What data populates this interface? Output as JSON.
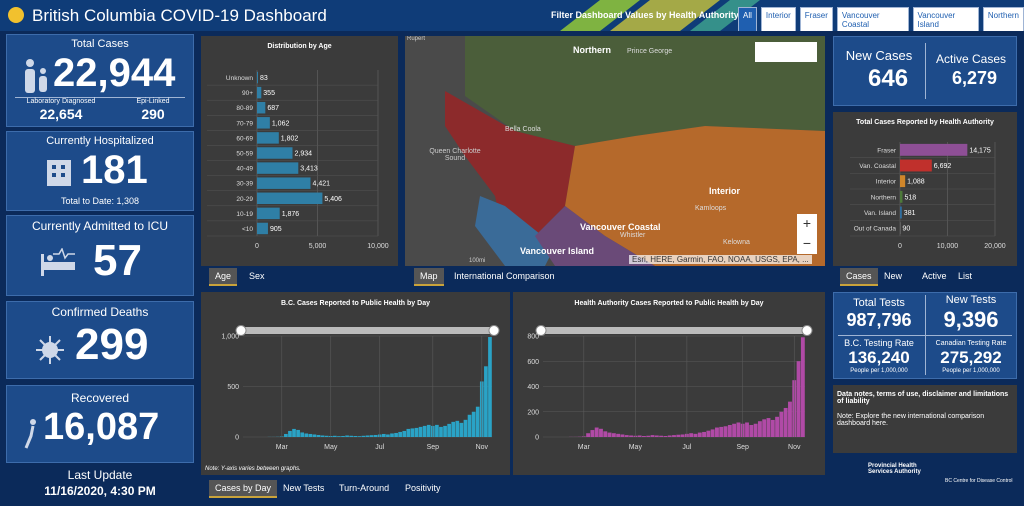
{
  "header": {
    "title": "British Columbia COVID-19 Dashboard",
    "filter_label": "Filter Dashboard Values by Health Authority:",
    "filters": [
      "All",
      "Interior",
      "Fraser",
      "Vancouver Coastal",
      "Vancouver Island",
      "Northern"
    ]
  },
  "kpis": {
    "total_cases": {
      "label": "Total Cases",
      "value": "22,944"
    },
    "lab": {
      "label": "Laboratory Diagnosed",
      "value": "22,654"
    },
    "epi": {
      "label": "Epi-Linked",
      "value": "290"
    },
    "hospitalized": {
      "label": "Currently Hospitalized",
      "value": "181",
      "sub": "Total to Date: 1,308"
    },
    "icu": {
      "label": "Currently Admitted to ICU",
      "value": "57"
    },
    "deaths": {
      "label": "Confirmed Deaths",
      "value": "299"
    },
    "recovered": {
      "label": "Recovered",
      "value": "16,087"
    },
    "last_update": {
      "label": "Last Update",
      "value": "11/16/2020, 4:30 PM"
    },
    "new_cases": {
      "label": "New Cases",
      "value": "646"
    },
    "active_cases": {
      "label": "Active Cases",
      "value": "6,279"
    },
    "total_tests": {
      "label": "Total Tests",
      "value": "987,796"
    },
    "new_tests": {
      "label": "New Tests",
      "value": "9,396"
    },
    "bc_rate": {
      "label": "B.C. Testing Rate",
      "value": "136,240",
      "sub": "People per 1,000,000"
    },
    "canada_rate": {
      "label": "Canadian Testing Rate",
      "value": "275,292",
      "sub": "People per 1,000,000"
    }
  },
  "tabs": {
    "age": [
      "Age",
      "Sex"
    ],
    "map": [
      "Map",
      "International Comparison"
    ],
    "ha": [
      "Cases",
      "New",
      "Active",
      "List"
    ],
    "daily": [
      "Cases by Day",
      "New Tests",
      "Turn-Around",
      "Positivity"
    ]
  },
  "map": {
    "labels": [
      "Northern",
      "Prince George",
      "Bella Coola",
      "Queen Charlotte Sound",
      "Interior",
      "Kamloops",
      "Vancouver Coastal",
      "Whistler",
      "Vancouver Island",
      "Kelowna",
      "Rupert"
    ],
    "attribution": "Esri, HERE, Garmin, FAO, NOAA, USGS, EPA, ...",
    "scale": "100mi"
  },
  "notes": {
    "title": "Data notes, terms of use, disclaimer and limitations of liability",
    "note": "Note: Explore the new international comparison dashboard here."
  },
  "logos": [
    "Provincial Health Services Authority",
    "BC Centre for Disease Control"
  ],
  "age_chart": {
    "type": "bar",
    "orientation": "horizontal",
    "title": "Distribution by Age",
    "categories": [
      "Unknown",
      "90+",
      "80-89",
      "70-79",
      "60-69",
      "50-59",
      "40-49",
      "30-39",
      "20-29",
      "10-19",
      "<10"
    ],
    "values": [
      83,
      355,
      687,
      1062,
      1802,
      2934,
      3413,
      4421,
      5406,
      1876,
      905
    ],
    "value_labels": [
      "83",
      "355",
      "687",
      "1,062",
      "1,802",
      "2,934",
      "3,413",
      "4,421",
      "5,406",
      "1,876",
      "905"
    ],
    "color": "#2f7fa6",
    "xlim": [
      0,
      10000
    ],
    "xticks": [
      0,
      {
        "value": 5000,
        "label": "5,000"
      },
      {
        "value": 10000,
        "label": "10,000"
      }
    ],
    "grid": true
  },
  "ha_chart": {
    "type": "bar",
    "orientation": "horizontal",
    "title": "Total Cases Reported by Health Authority",
    "categories": [
      "Fraser",
      "Van. Coastal",
      "Interior",
      "Northern",
      "Van. Island",
      "Out of Canada"
    ],
    "values": [
      14175,
      6692,
      1088,
      518,
      381,
      90
    ],
    "value_labels": [
      "14,175",
      "6,692",
      "1,088",
      "518",
      "381",
      "90"
    ],
    "colors": [
      "#8e4f96",
      "#c0302c",
      "#d0862a",
      "#4d7a3a",
      "#2f6d9e",
      "#888888"
    ],
    "xlim": [
      0,
      20000
    ],
    "xticks": [
      0,
      {
        "value": 10000,
        "label": "10,000"
      },
      {
        "value": 20000,
        "label": "20,000"
      }
    ],
    "grid": true
  },
  "bc_daily": {
    "type": "bar",
    "orientation": "vertical",
    "title": "B.C. Cases Reported to Public Health by Day",
    "note": "Note: Y-axis varies between graphs.",
    "categories": [
      null,
      null,
      null,
      null,
      null,
      null,
      null,
      null,
      null,
      "Mar",
      null,
      null,
      null,
      null,
      null,
      null,
      null,
      null,
      null,
      null,
      null,
      "May",
      null,
      null,
      null,
      null,
      null,
      null,
      null,
      null,
      null,
      null,
      null,
      "Jul",
      null,
      null,
      null,
      null,
      null,
      null,
      null,
      null,
      null,
      null,
      null,
      null,
      "Sep",
      null,
      null,
      null,
      null,
      null,
      null,
      null,
      null,
      null,
      null,
      null,
      "Nov",
      null,
      null
    ],
    "values": [
      0,
      0,
      0,
      0,
      0,
      0,
      1,
      1,
      2,
      5,
      30,
      60,
      80,
      70,
      45,
      35,
      30,
      25,
      20,
      15,
      12,
      10,
      12,
      8,
      10,
      15,
      12,
      10,
      8,
      12,
      15,
      18,
      20,
      25,
      30,
      25,
      35,
      40,
      50,
      60,
      80,
      85,
      90,
      100,
      110,
      120,
      110,
      120,
      100,
      110,
      130,
      150,
      160,
      140,
      170,
      220,
      250,
      300,
      550,
      700,
      990
    ],
    "color": "#2aa3c6",
    "ylim": [
      0,
      1000
    ],
    "yticks": [
      0,
      500,
      {
        "value": 1000,
        "label": "1,000"
      }
    ],
    "grid": true
  },
  "ha_daily": {
    "type": "bar",
    "orientation": "vertical",
    "title": "Health Authority Cases Reported to Public Health by Day",
    "categories": [
      null,
      null,
      null,
      null,
      null,
      null,
      null,
      null,
      null,
      "Mar",
      null,
      null,
      null,
      null,
      null,
      null,
      null,
      null,
      null,
      null,
      null,
      "May",
      null,
      null,
      null,
      null,
      null,
      null,
      null,
      null,
      null,
      null,
      null,
      "Jul",
      null,
      null,
      null,
      null,
      null,
      null,
      null,
      null,
      null,
      null,
      null,
      null,
      "Sep",
      null,
      null,
      null,
      null,
      null,
      null,
      null,
      null,
      null,
      null,
      null,
      "Nov",
      null,
      null
    ],
    "values": [
      0,
      0,
      0,
      0,
      0,
      0,
      1,
      1,
      2,
      5,
      30,
      55,
      75,
      65,
      45,
      35,
      30,
      25,
      20,
      15,
      12,
      10,
      12,
      8,
      10,
      15,
      12,
      10,
      8,
      12,
      15,
      18,
      20,
      25,
      30,
      25,
      35,
      40,
      50,
      60,
      75,
      80,
      85,
      95,
      105,
      115,
      105,
      115,
      95,
      105,
      125,
      140,
      150,
      135,
      160,
      200,
      230,
      280,
      450,
      600,
      790
    ],
    "color": "#b04aa6",
    "ylim": [
      0,
      800
    ],
    "yticks": [
      0,
      200,
      400,
      600,
      800
    ],
    "grid": true
  }
}
